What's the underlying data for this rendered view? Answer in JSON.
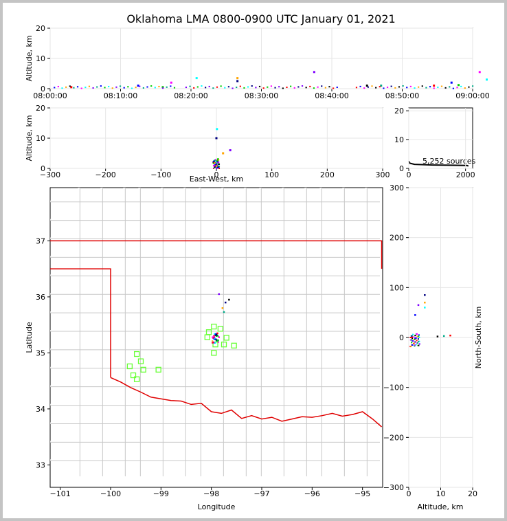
{
  "chart_data": [
    {
      "panel": "time-altitude",
      "type": "scatter",
      "title": "Oklahoma LMA 0800-0900 UTC January 01, 2021",
      "xlabel": "",
      "ylabel": "Altitude, km",
      "x_tick_labels": [
        "08:00:00",
        "08:10:00",
        "08:20:00",
        "08:30:00",
        "08:40:00",
        "08:50:00",
        "09:00:00"
      ],
      "x_ticks_min": [
        0,
        10,
        20,
        30,
        40,
        50,
        60
      ],
      "xlim_min": [
        0,
        60
      ],
      "ylim": [
        0,
        20
      ],
      "y_ticks": [
        0,
        10,
        20
      ],
      "points_min_km": [
        [
          3,
          0.5
        ],
        [
          12.5,
          1
        ],
        [
          16,
          0.5
        ],
        [
          17.2,
          2
        ],
        [
          20.8,
          3.5
        ],
        [
          26.6,
          2.5
        ],
        [
          26.6,
          3.5
        ],
        [
          37.5,
          5.5
        ],
        [
          45,
          1
        ],
        [
          47,
          1
        ],
        [
          54.5,
          1
        ],
        [
          57,
          2
        ],
        [
          58,
          1.2
        ],
        [
          61,
          5.5
        ],
        [
          62,
          3
        ]
      ]
    },
    {
      "panel": "east-west-altitude",
      "type": "scatter",
      "xlabel": "East-West, km",
      "ylabel": "Altitude, km",
      "xlim": [
        -300,
        300
      ],
      "x_ticks": [
        -300,
        -200,
        -100,
        0,
        100,
        200,
        300
      ],
      "ylim": [
        0,
        20
      ],
      "y_ticks": [
        0,
        10,
        20
      ],
      "points": [
        [
          0,
          1
        ],
        [
          2,
          2
        ],
        [
          3,
          3
        ],
        [
          -3,
          0.5
        ],
        [
          1,
          13
        ],
        [
          0,
          10
        ],
        [
          12,
          5
        ],
        [
          25,
          6
        ],
        [
          -5,
          2
        ],
        [
          4,
          0.3
        ]
      ]
    },
    {
      "panel": "altitude-histogram",
      "type": "line",
      "annotation": "5,252 sources",
      "xlim": [
        0,
        2250
      ],
      "x_ticks": [
        0,
        2000
      ],
      "ylim": [
        0,
        21
      ],
      "y_ticks": [
        0,
        10,
        20
      ]
    },
    {
      "panel": "plan-view",
      "type": "scatter",
      "xlabel": "Longitude",
      "ylabel": "Latitude",
      "xlim": [
        -101.2,
        -94.6
      ],
      "ylim": [
        32.6,
        37.95
      ],
      "x_ticks": [
        -101,
        -100,
        -99,
        -98,
        -97,
        -96,
        -95
      ],
      "y_ticks": [
        33,
        34,
        35,
        36,
        37
      ],
      "stations": [
        [
          -97.95,
          35.47
        ],
        [
          -98.05,
          35.37
        ],
        [
          -98.08,
          35.28
        ],
        [
          -97.92,
          35.15
        ],
        [
          -97.82,
          35.43
        ],
        [
          -97.7,
          35.27
        ],
        [
          -97.75,
          35.15
        ],
        [
          -97.55,
          35.13
        ],
        [
          -97.95,
          35.0
        ],
        [
          -99.48,
          34.98
        ],
        [
          -99.4,
          34.85
        ],
        [
          -99.62,
          34.76
        ],
        [
          -99.35,
          34.7
        ],
        [
          -99.05,
          34.7
        ],
        [
          -99.55,
          34.6
        ],
        [
          -99.48,
          34.53
        ]
      ],
      "sources": [
        [
          -97.95,
          35.3
        ],
        [
          -97.92,
          35.25
        ],
        [
          -97.9,
          35.22
        ],
        [
          -97.85,
          35.28
        ],
        [
          -97.93,
          35.18
        ],
        [
          -97.72,
          35.9
        ],
        [
          -97.78,
          35.8
        ],
        [
          -97.85,
          36.05
        ],
        [
          -97.65,
          35.95
        ],
        [
          -97.75,
          35.73
        ],
        [
          -97.88,
          35.35
        ]
      ]
    },
    {
      "panel": "altitude-north-south",
      "type": "scatter",
      "xlabel": "Altitude, km",
      "ylabel": "North-South, km",
      "xlim": [
        0,
        20
      ],
      "x_ticks": [
        0,
        10,
        20
      ],
      "ylim": [
        -300,
        300
      ],
      "y_ticks": [
        -300,
        -200,
        -100,
        0,
        100,
        200,
        300
      ],
      "points": [
        [
          1,
          0
        ],
        [
          2,
          -2
        ],
        [
          3,
          2
        ],
        [
          2,
          -15
        ],
        [
          5,
          60
        ],
        [
          5,
          85
        ],
        [
          5,
          70
        ],
        [
          3,
          65
        ],
        [
          9,
          2
        ],
        [
          11,
          3
        ],
        [
          13,
          4
        ],
        [
          2,
          45
        ]
      ]
    }
  ]
}
